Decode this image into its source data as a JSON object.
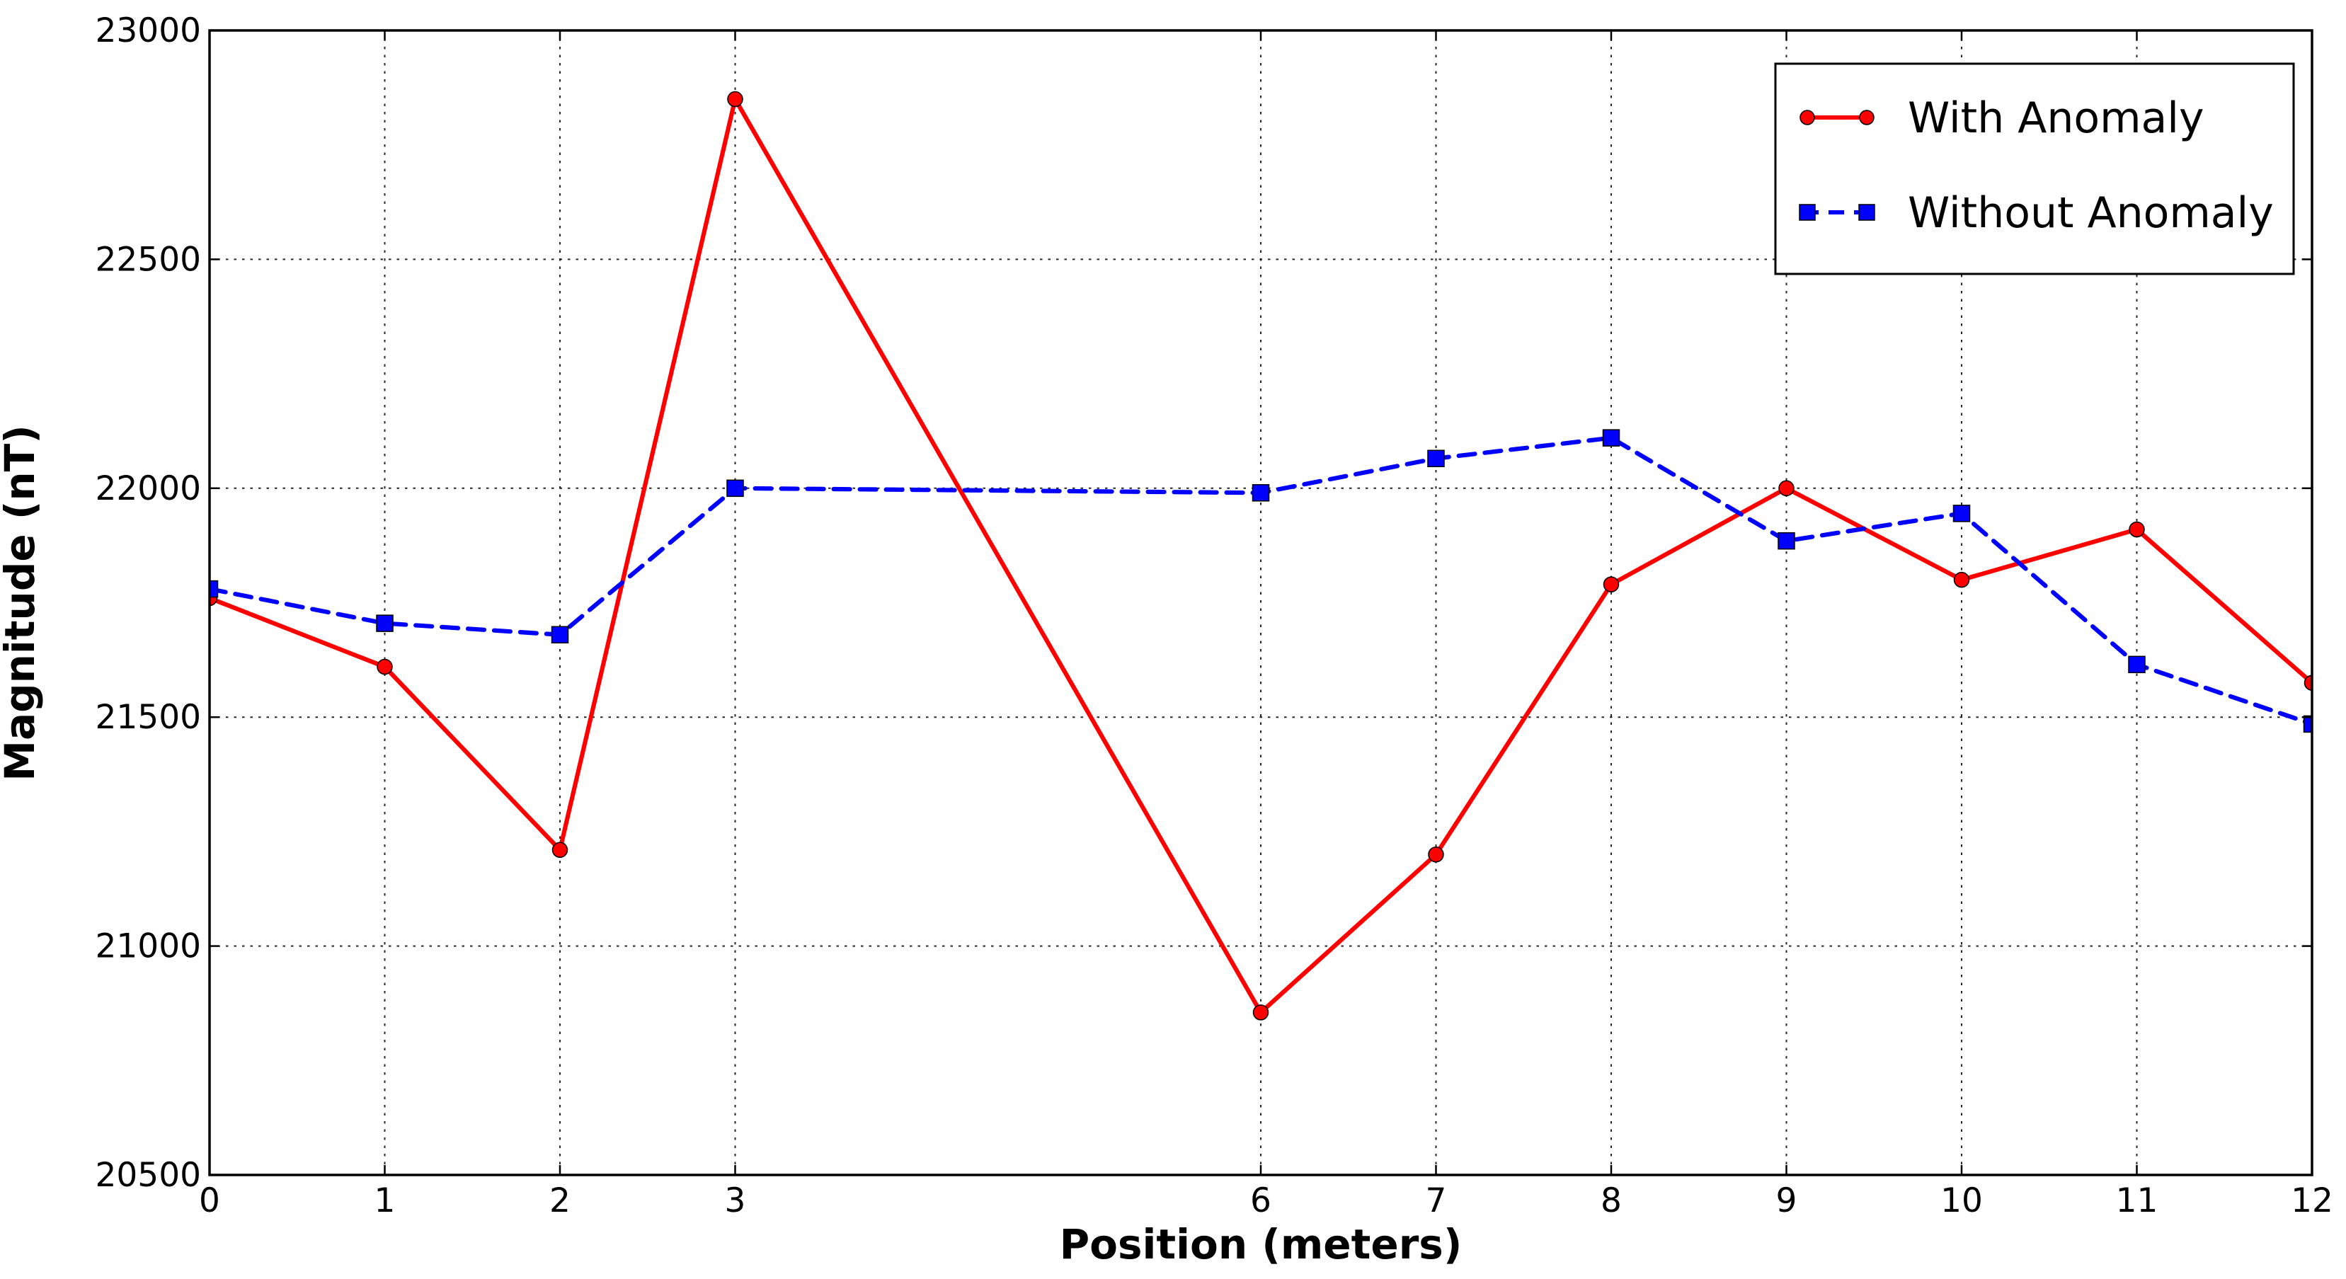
{
  "figure": {
    "background_color": "#ffffff",
    "grid_color": "#000000",
    "axis_color": "#000000"
  },
  "chart_data": {
    "type": "line",
    "title": "",
    "xlabel": "Position (meters)",
    "ylabel": "Magnitude (nT)",
    "x": [
      0,
      1,
      2,
      3,
      6,
      7,
      8,
      9,
      10,
      11,
      12
    ],
    "x_tick_labels": [
      "0",
      "1",
      "2",
      "3",
      "6",
      "7",
      "8",
      "9",
      "10",
      "11",
      "12"
    ],
    "y_ticks": [
      20500,
      21000,
      21500,
      22000,
      22500,
      23000
    ],
    "y_tick_labels": [
      "20500",
      "21000",
      "21500",
      "22000",
      "22500",
      "23000"
    ],
    "xlim": [
      0,
      12
    ],
    "ylim": [
      20500,
      23000
    ],
    "grid": "dotted both directions at ticks",
    "legend_position": "upper right",
    "series": [
      {
        "name": "With Anomaly",
        "color": "#ff0000",
        "linestyle": "solid",
        "marker": "circle",
        "values": [
          21760,
          21610,
          21210,
          22850,
          20855,
          21200,
          21790,
          22000,
          21800,
          21910,
          21575
        ]
      },
      {
        "name": "Without Anomaly",
        "color": "#0000ff",
        "linestyle": "dashed",
        "marker": "square",
        "values": [
          21780,
          21705,
          21680,
          22000,
          21990,
          22065,
          22110,
          21885,
          21945,
          21615,
          21485
        ]
      }
    ]
  }
}
